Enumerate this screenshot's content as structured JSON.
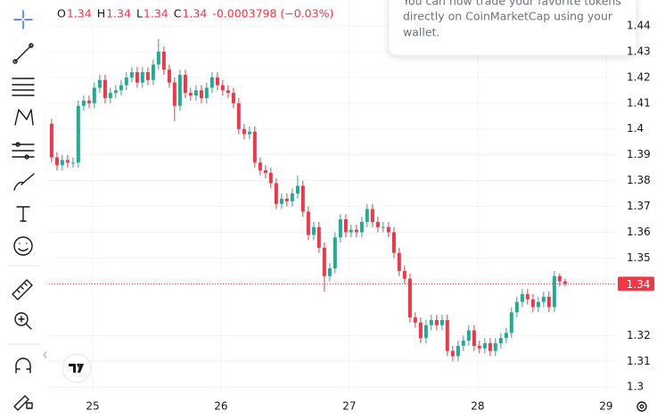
{
  "chart_data": {
    "type": "candlestick",
    "legend": {
      "open_label": "O",
      "open": "1.34",
      "high_label": "H",
      "high": "1.34",
      "low_label": "L",
      "low": "1.34",
      "close_label": "C",
      "close": "1.34",
      "change": "-0.0003798 (−0.03%)"
    },
    "popup": [
      "You can now trade your favorite tokens",
      "directly on CoinMarketCap using your",
      "wallet."
    ],
    "up_color": "#22ab94",
    "down_color": "#f23645",
    "xlim": [
      24.66,
      29.07
    ],
    "xticks": [
      25,
      26,
      27,
      28,
      29
    ],
    "ylim": [
      1.298,
      1.45
    ],
    "yticks": [
      1.3,
      1.31,
      1.32,
      1.34,
      1.35,
      1.36,
      1.37,
      1.38,
      1.39,
      1.4,
      1.41,
      1.42,
      1.43,
      1.44
    ],
    "grid": true,
    "last_price": 1.34,
    "x": [
      24.68,
      24.722,
      24.763,
      24.805,
      24.847,
      24.888,
      24.93,
      24.972,
      25.013,
      25.055,
      25.097,
      25.138,
      25.18,
      25.222,
      25.263,
      25.305,
      25.347,
      25.388,
      25.43,
      25.472,
      25.513,
      25.555,
      25.597,
      25.638,
      25.68,
      25.722,
      25.763,
      25.805,
      25.847,
      25.888,
      25.93,
      25.972,
      26.013,
      26.055,
      26.097,
      26.138,
      26.18,
      26.222,
      26.263,
      26.305,
      26.347,
      26.388,
      26.43,
      26.472,
      26.513,
      26.555,
      26.597,
      26.638,
      26.68,
      26.722,
      26.763,
      26.805,
      26.847,
      26.888,
      26.93,
      26.972,
      27.013,
      27.055,
      27.097,
      27.138,
      27.18,
      27.222,
      27.263,
      27.305,
      27.347,
      27.388,
      27.43,
      27.472,
      27.513,
      27.555,
      27.597,
      27.638,
      27.68,
      27.722,
      27.763,
      27.805,
      27.847,
      27.888,
      27.93,
      27.972,
      28.013,
      28.055,
      28.097,
      28.138,
      28.18,
      28.222,
      28.263,
      28.305,
      28.347,
      28.388,
      28.43,
      28.472,
      28.513,
      28.555,
      28.597,
      28.638,
      28.68
    ],
    "open": [
      1.402,
      1.389,
      1.386,
      1.388,
      1.387,
      1.387,
      1.409,
      1.411,
      1.41,
      1.416,
      1.419,
      1.412,
      1.414,
      1.415,
      1.417,
      1.42,
      1.422,
      1.418,
      1.422,
      1.419,
      1.425,
      1.43,
      1.423,
      1.418,
      1.409,
      1.421,
      1.414,
      1.413,
      1.415,
      1.412,
      1.416,
      1.42,
      1.417,
      1.415,
      1.414,
      1.41,
      1.4,
      1.398,
      1.399,
      1.387,
      1.384,
      1.383,
      1.379,
      1.371,
      1.373,
      1.372,
      1.375,
      1.378,
      1.368,
      1.359,
      1.362,
      1.354,
      1.343,
      1.346,
      1.358,
      1.365,
      1.36,
      1.361,
      1.36,
      1.364,
      1.369,
      1.364,
      1.362,
      1.362,
      1.36,
      1.352,
      1.345,
      1.342,
      1.327,
      1.325,
      1.319,
      1.324,
      1.326,
      1.324,
      1.326,
      1.314,
      1.312,
      1.316,
      1.318,
      1.322,
      1.316,
      1.315,
      1.317,
      1.314,
      1.317,
      1.319,
      1.321,
      1.329,
      1.333,
      1.336,
      1.334,
      1.331,
      1.333,
      1.335,
      1.331,
      1.343,
      1.341
    ],
    "high": [
      1.404,
      1.391,
      1.39,
      1.39,
      1.389,
      1.411,
      1.413,
      1.413,
      1.418,
      1.421,
      1.421,
      1.416,
      1.417,
      1.419,
      1.422,
      1.424,
      1.424,
      1.424,
      1.424,
      1.427,
      1.435,
      1.432,
      1.425,
      1.42,
      1.423,
      1.423,
      1.416,
      1.417,
      1.417,
      1.418,
      1.422,
      1.422,
      1.419,
      1.417,
      1.416,
      1.412,
      1.402,
      1.401,
      1.401,
      1.389,
      1.386,
      1.385,
      1.381,
      1.375,
      1.375,
      1.377,
      1.382,
      1.38,
      1.37,
      1.364,
      1.364,
      1.356,
      1.348,
      1.36,
      1.367,
      1.367,
      1.363,
      1.363,
      1.366,
      1.371,
      1.371,
      1.366,
      1.364,
      1.364,
      1.362,
      1.354,
      1.347,
      1.344,
      1.329,
      1.327,
      1.326,
      1.328,
      1.328,
      1.328,
      1.328,
      1.316,
      1.318,
      1.32,
      1.324,
      1.324,
      1.318,
      1.319,
      1.319,
      1.319,
      1.321,
      1.323,
      1.331,
      1.335,
      1.338,
      1.338,
      1.336,
      1.335,
      1.337,
      1.337,
      1.345,
      1.344,
      1.342
    ],
    "low": [
      1.387,
      1.384,
      1.384,
      1.385,
      1.385,
      1.385,
      1.407,
      1.408,
      1.408,
      1.414,
      1.41,
      1.41,
      1.412,
      1.413,
      1.415,
      1.418,
      1.416,
      1.416,
      1.417,
      1.417,
      1.423,
      1.421,
      1.416,
      1.403,
      1.407,
      1.412,
      1.411,
      1.411,
      1.41,
      1.41,
      1.414,
      1.415,
      1.413,
      1.412,
      1.408,
      1.398,
      1.396,
      1.396,
      1.385,
      1.382,
      1.381,
      1.377,
      1.369,
      1.369,
      1.37,
      1.37,
      1.373,
      1.366,
      1.357,
      1.357,
      1.352,
      1.337,
      1.341,
      1.344,
      1.356,
      1.358,
      1.358,
      1.358,
      1.358,
      1.362,
      1.362,
      1.36,
      1.36,
      1.358,
      1.35,
      1.343,
      1.34,
      1.325,
      1.323,
      1.317,
      1.317,
      1.322,
      1.322,
      1.322,
      1.312,
      1.31,
      1.31,
      1.314,
      1.316,
      1.314,
      1.313,
      1.313,
      1.312,
      1.312,
      1.315,
      1.317,
      1.319,
      1.327,
      1.331,
      1.332,
      1.329,
      1.329,
      1.331,
      1.329,
      1.329,
      1.339,
      1.339
    ],
    "close": [
      1.389,
      1.386,
      1.388,
      1.387,
      1.387,
      1.409,
      1.411,
      1.41,
      1.416,
      1.419,
      1.412,
      1.414,
      1.415,
      1.417,
      1.42,
      1.422,
      1.418,
      1.422,
      1.419,
      1.425,
      1.43,
      1.423,
      1.418,
      1.409,
      1.421,
      1.414,
      1.413,
      1.415,
      1.412,
      1.416,
      1.42,
      1.417,
      1.415,
      1.414,
      1.41,
      1.4,
      1.398,
      1.399,
      1.387,
      1.384,
      1.383,
      1.379,
      1.371,
      1.373,
      1.372,
      1.375,
      1.378,
      1.368,
      1.359,
      1.362,
      1.354,
      1.343,
      1.346,
      1.358,
      1.365,
      1.36,
      1.361,
      1.36,
      1.364,
      1.369,
      1.364,
      1.362,
      1.362,
      1.36,
      1.352,
      1.345,
      1.342,
      1.327,
      1.325,
      1.319,
      1.324,
      1.326,
      1.324,
      1.326,
      1.314,
      1.312,
      1.316,
      1.318,
      1.322,
      1.316,
      1.315,
      1.317,
      1.314,
      1.317,
      1.319,
      1.321,
      1.329,
      1.333,
      1.336,
      1.334,
      1.331,
      1.333,
      1.335,
      1.331,
      1.343,
      1.341,
      1.34
    ]
  }
}
